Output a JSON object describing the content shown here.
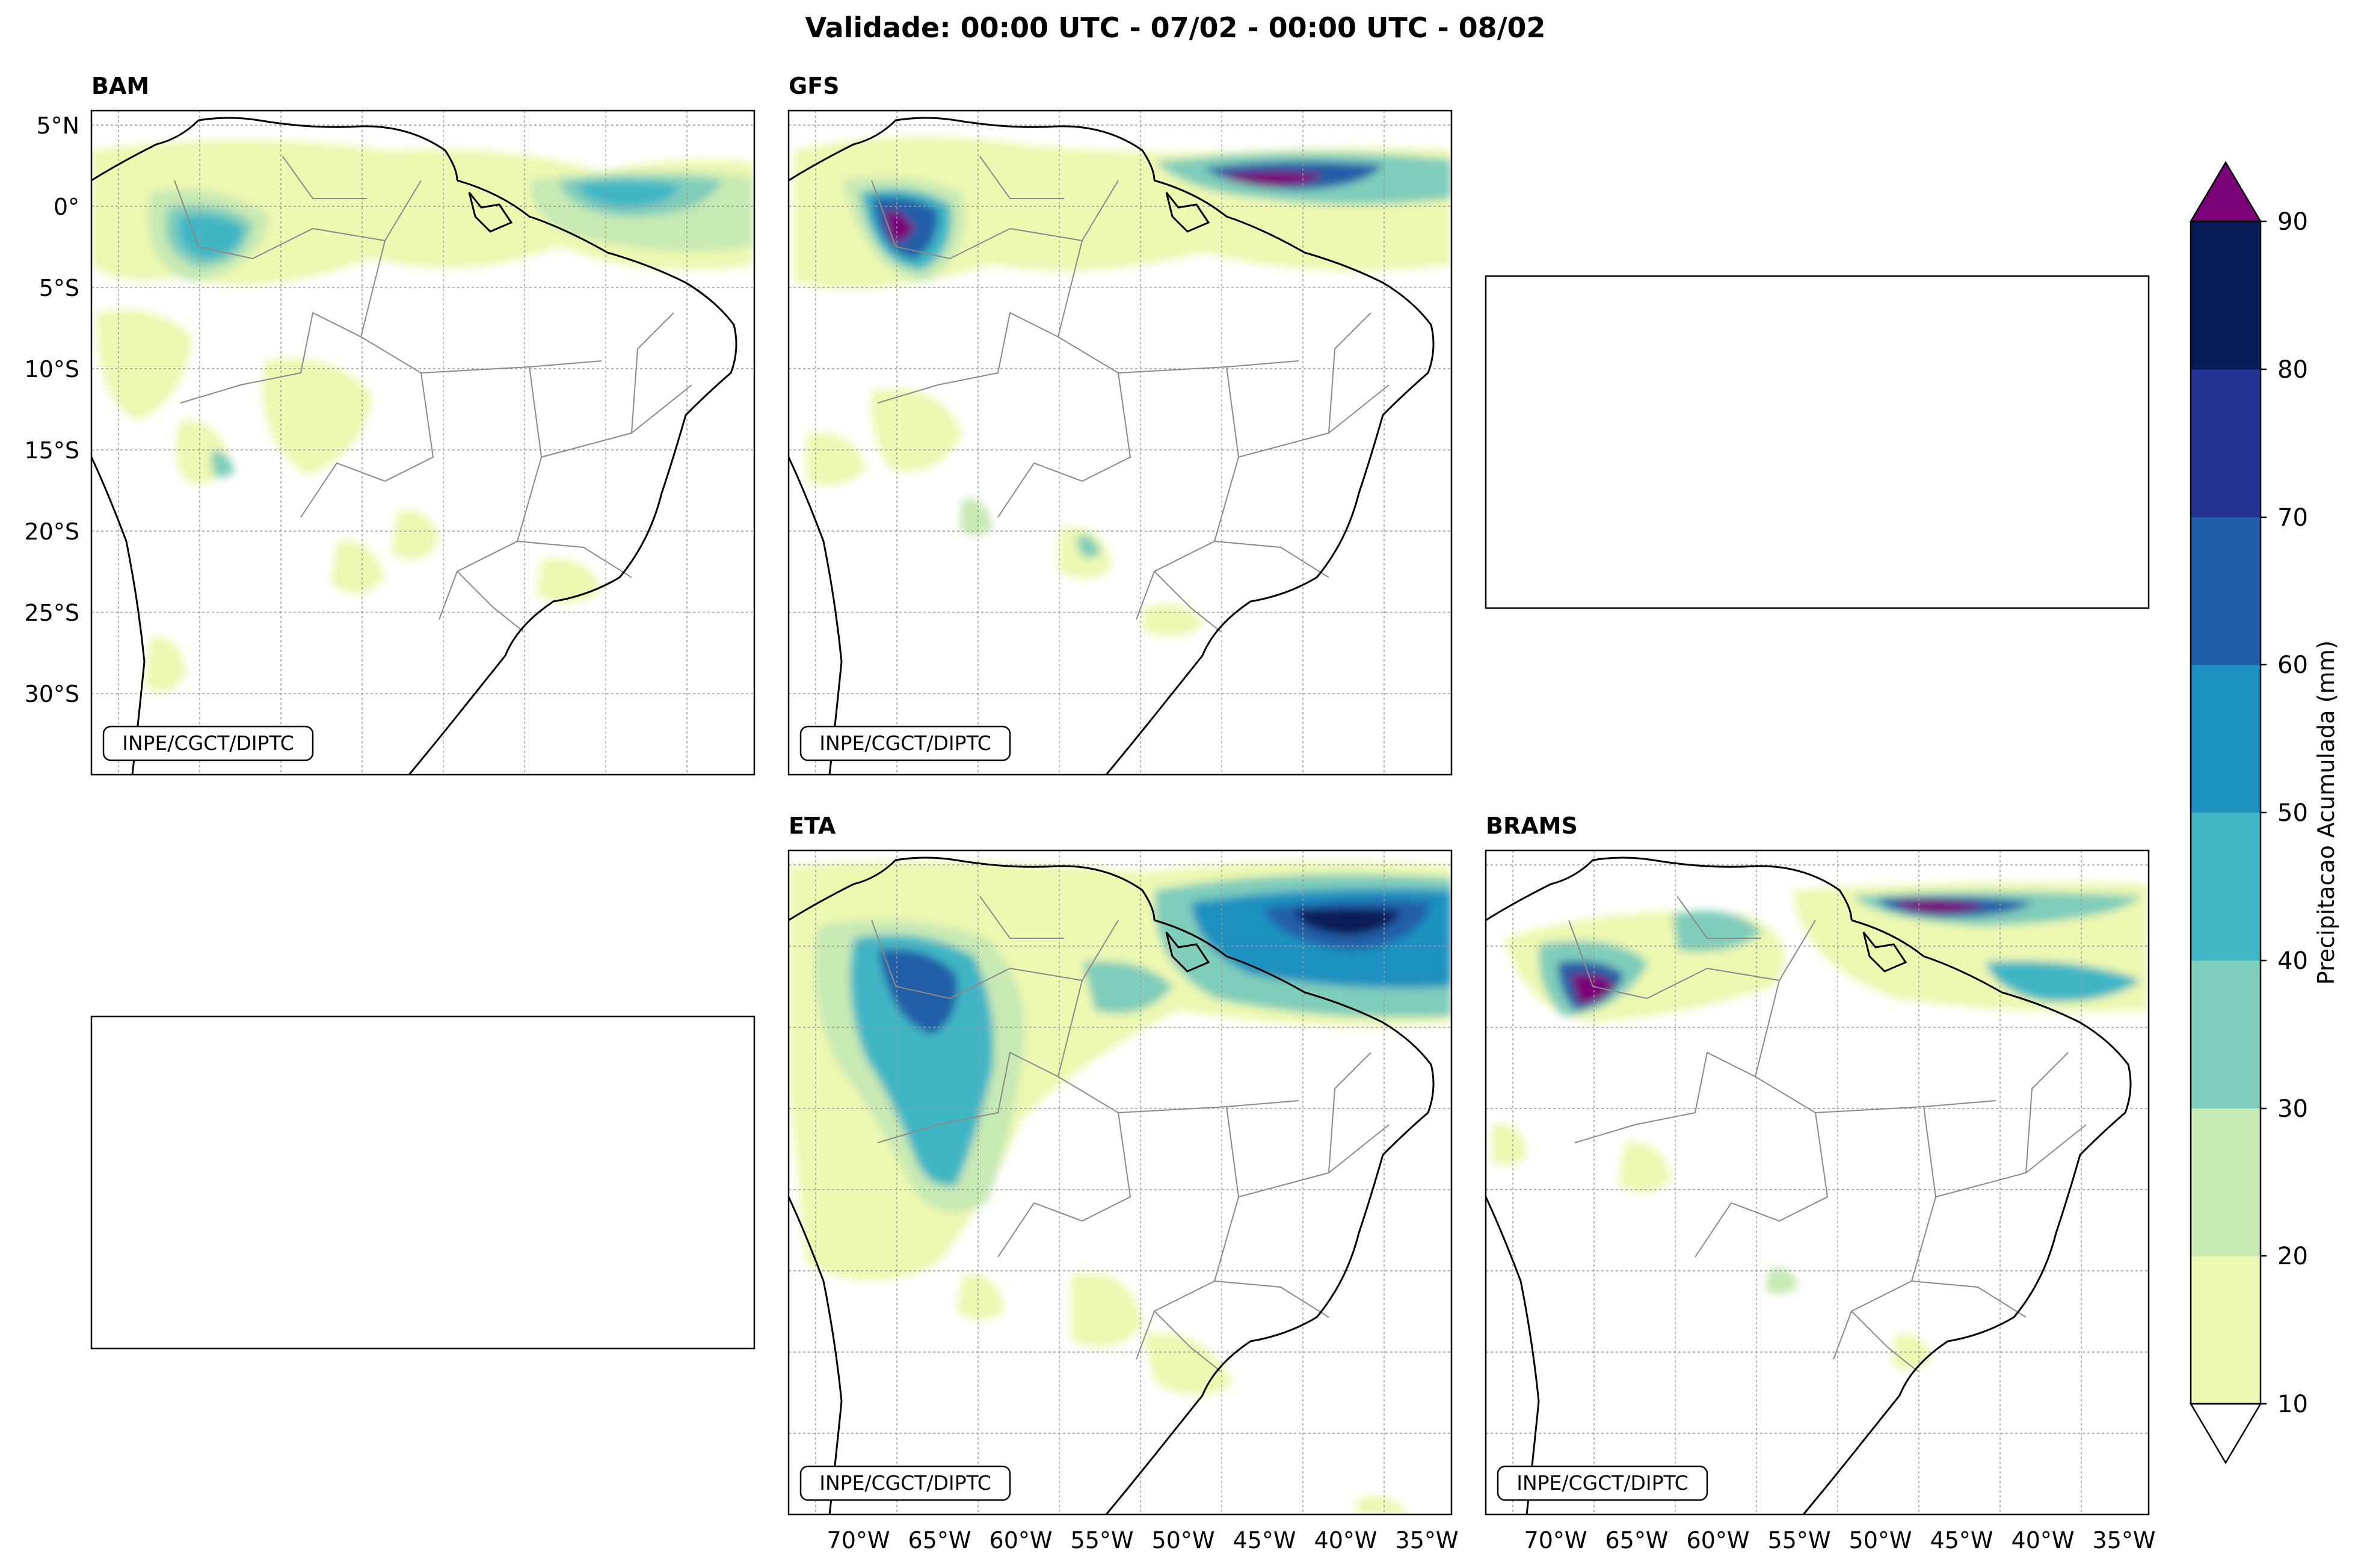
{
  "figure": {
    "title": "Validade: 00:00 UTC - 07/02 - 00:00 UTC - 08/02"
  },
  "panels": {
    "bam": {
      "label": "BAM",
      "credit": "INPE/CGCT/DIPTC"
    },
    "gfs": {
      "label": "GFS",
      "credit": "INPE/CGCT/DIPTC"
    },
    "eta": {
      "label": "ETA",
      "credit": "INPE/CGCT/DIPTC"
    },
    "brams": {
      "label": "BRAMS",
      "credit": "INPE/CGCT/DIPTC"
    }
  },
  "axes": {
    "lat_ticks": [
      "5°N",
      "0°",
      "5°S",
      "10°S",
      "15°S",
      "20°S",
      "25°S",
      "30°S"
    ],
    "lon_ticks": [
      "70°W",
      "65°W",
      "60°W",
      "55°W",
      "50°W",
      "45°W",
      "40°W",
      "35°W"
    ]
  },
  "colorbar": {
    "label": "Precipitacao Acumulada (mm)",
    "ticks": [
      "10",
      "20",
      "30",
      "40",
      "50",
      "60",
      "70",
      "80",
      "90"
    ],
    "colors": [
      "#edf8b1",
      "#c7e9b4",
      "#7fcdbb",
      "#41b6c4",
      "#1d91c0",
      "#225ea8",
      "#253494",
      "#081d58"
    ],
    "extend_color": "#7a0177"
  },
  "map_colors": {
    "coast": "#000000",
    "borders": "#8a8a8a",
    "grid": "#9a9a9a"
  }
}
